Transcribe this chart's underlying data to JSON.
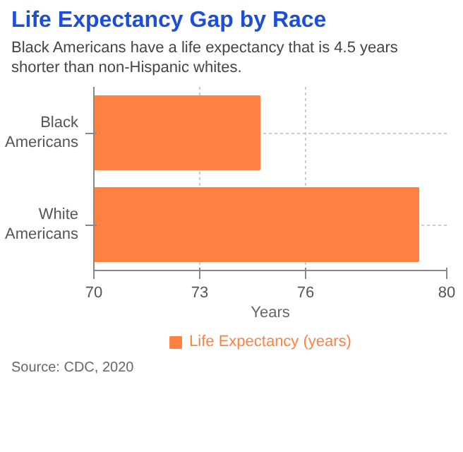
{
  "chart_data": {
    "type": "bar",
    "orientation": "horizontal",
    "title": "Life Expectancy Gap by Race",
    "subtitle": "Black Americans have a life expectancy that is 4.5 years shorter than non-Hispanic whites.",
    "xlabel": "Years",
    "annotations": [
      "Source: CDC, 2020"
    ],
    "categories": [
      "Black Americans",
      "White Americans"
    ],
    "series": [
      {
        "name": "Life Expectancy (years)",
        "color": "#ff8142",
        "values": [
          74.7,
          79.2
        ]
      }
    ],
    "xlim": [
      70,
      80
    ],
    "xticks": [
      70,
      73,
      76,
      80
    ],
    "grid": true,
    "legend": "bottom"
  }
}
